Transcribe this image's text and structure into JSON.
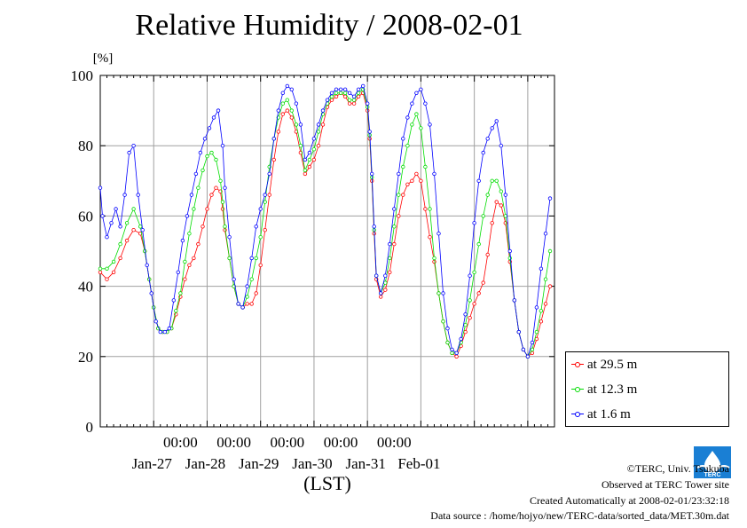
{
  "header": {
    "title": "Relative Humidity / 2008-02-01"
  },
  "chart_data": {
    "type": "line",
    "title": "Relative Humidity / 2008-02-01",
    "ylabel": "[%]",
    "xlabel": "(LST)",
    "ylim": [
      0,
      100
    ],
    "yticks": [
      0,
      20,
      40,
      60,
      80,
      100
    ],
    "xlim_days": [
      "Jan-26 00:00 (approx)",
      "Feb-02 00:00 (approx)"
    ],
    "x_tick_top_labels": [
      "00:00",
      "00:00",
      "00:00",
      "00:00",
      "00:00"
    ],
    "x_tick_bottom_labels": [
      "Jan-27",
      "Jan-28",
      "Jan-29",
      "Jan-30",
      "Jan-31",
      "Feb-01"
    ],
    "grid": true,
    "legend_position": "bottom-right outside",
    "x_unit": "hours from Jan-26 00:00",
    "series": [
      {
        "name": "at 29.5 m",
        "color": "#ff0000",
        "points": [
          [
            0,
            44
          ],
          [
            3,
            42
          ],
          [
            6,
            44
          ],
          [
            9,
            48
          ],
          [
            12,
            53
          ],
          [
            15,
            56
          ],
          [
            18,
            55
          ],
          [
            20,
            50
          ],
          [
            22,
            42
          ],
          [
            24,
            34
          ],
          [
            26,
            28
          ],
          [
            28,
            27
          ],
          [
            30,
            27
          ],
          [
            32,
            28
          ],
          [
            34,
            32
          ],
          [
            36,
            37
          ],
          [
            38,
            42
          ],
          [
            40,
            46
          ],
          [
            42,
            48
          ],
          [
            44,
            52
          ],
          [
            46,
            57
          ],
          [
            48,
            62
          ],
          [
            50,
            66
          ],
          [
            52,
            68
          ],
          [
            54,
            67
          ],
          [
            55,
            62
          ],
          [
            56,
            56
          ],
          [
            58,
            48
          ],
          [
            60,
            40
          ],
          [
            62,
            35
          ],
          [
            64,
            34
          ],
          [
            66,
            35
          ],
          [
            68,
            35
          ],
          [
            70,
            38
          ],
          [
            72,
            46
          ],
          [
            74,
            56
          ],
          [
            76,
            66
          ],
          [
            78,
            76
          ],
          [
            80,
            84
          ],
          [
            82,
            89
          ],
          [
            84,
            90
          ],
          [
            86,
            88
          ],
          [
            88,
            84
          ],
          [
            90,
            78
          ],
          [
            92,
            72
          ],
          [
            94,
            74
          ],
          [
            96,
            76
          ],
          [
            98,
            80
          ],
          [
            100,
            86
          ],
          [
            102,
            91
          ],
          [
            104,
            93
          ],
          [
            106,
            94
          ],
          [
            108,
            95
          ],
          [
            110,
            94
          ],
          [
            112,
            92
          ],
          [
            114,
            92
          ],
          [
            116,
            94
          ],
          [
            118,
            95
          ],
          [
            120,
            90
          ],
          [
            121,
            82
          ],
          [
            122,
            70
          ],
          [
            123,
            55
          ],
          [
            124,
            42
          ],
          [
            126,
            37
          ],
          [
            128,
            39
          ],
          [
            130,
            44
          ],
          [
            132,
            52
          ],
          [
            134,
            60
          ],
          [
            136,
            66
          ],
          [
            138,
            69
          ],
          [
            140,
            70
          ],
          [
            142,
            72
          ],
          [
            144,
            70
          ],
          [
            146,
            62
          ],
          [
            148,
            54
          ],
          [
            150,
            47
          ],
          [
            152,
            38
          ],
          [
            154,
            30
          ],
          [
            156,
            24
          ],
          [
            158,
            21
          ],
          [
            160,
            20
          ],
          [
            162,
            23
          ],
          [
            164,
            27
          ],
          [
            166,
            31
          ],
          [
            168,
            35
          ],
          [
            170,
            38
          ],
          [
            172,
            41
          ],
          [
            174,
            49
          ],
          [
            176,
            58
          ],
          [
            178,
            64
          ],
          [
            180,
            63
          ],
          [
            182,
            58
          ],
          [
            184,
            47
          ],
          [
            186,
            36
          ],
          [
            188,
            27
          ],
          [
            190,
            22
          ],
          [
            192,
            20
          ],
          [
            194,
            21
          ],
          [
            196,
            25
          ],
          [
            198,
            30
          ],
          [
            200,
            35
          ],
          [
            202,
            40
          ]
        ]
      },
      {
        "name": "at 12.3 m",
        "color": "#00dd00",
        "points": [
          [
            0,
            45
          ],
          [
            3,
            45
          ],
          [
            6,
            47
          ],
          [
            9,
            52
          ],
          [
            12,
            58
          ],
          [
            15,
            62
          ],
          [
            18,
            57
          ],
          [
            20,
            50
          ],
          [
            22,
            42
          ],
          [
            24,
            34
          ],
          [
            26,
            28
          ],
          [
            28,
            27
          ],
          [
            30,
            27
          ],
          [
            32,
            28
          ],
          [
            34,
            33
          ],
          [
            36,
            38
          ],
          [
            38,
            47
          ],
          [
            40,
            55
          ],
          [
            42,
            62
          ],
          [
            44,
            68
          ],
          [
            46,
            73
          ],
          [
            48,
            77
          ],
          [
            50,
            78
          ],
          [
            52,
            76
          ],
          [
            54,
            70
          ],
          [
            55,
            64
          ],
          [
            56,
            57
          ],
          [
            58,
            48
          ],
          [
            60,
            40
          ],
          [
            62,
            35
          ],
          [
            64,
            34
          ],
          [
            66,
            37
          ],
          [
            68,
            42
          ],
          [
            70,
            48
          ],
          [
            72,
            54
          ],
          [
            74,
            64
          ],
          [
            76,
            74
          ],
          [
            78,
            82
          ],
          [
            80,
            88
          ],
          [
            82,
            92
          ],
          [
            84,
            93
          ],
          [
            86,
            90
          ],
          [
            88,
            86
          ],
          [
            90,
            80
          ],
          [
            92,
            73
          ],
          [
            94,
            76
          ],
          [
            96,
            79
          ],
          [
            98,
            84
          ],
          [
            100,
            89
          ],
          [
            102,
            92
          ],
          [
            104,
            94
          ],
          [
            106,
            95
          ],
          [
            108,
            95
          ],
          [
            110,
            95
          ],
          [
            112,
            93
          ],
          [
            114,
            93
          ],
          [
            116,
            95
          ],
          [
            118,
            96
          ],
          [
            120,
            91
          ],
          [
            121,
            83
          ],
          [
            122,
            71
          ],
          [
            123,
            56
          ],
          [
            124,
            43
          ],
          [
            126,
            38
          ],
          [
            128,
            41
          ],
          [
            130,
            48
          ],
          [
            132,
            57
          ],
          [
            134,
            66
          ],
          [
            136,
            74
          ],
          [
            138,
            80
          ],
          [
            140,
            86
          ],
          [
            142,
            89
          ],
          [
            144,
            85
          ],
          [
            146,
            74
          ],
          [
            148,
            62
          ],
          [
            150,
            48
          ],
          [
            152,
            38
          ],
          [
            154,
            30
          ],
          [
            156,
            24
          ],
          [
            158,
            21
          ],
          [
            160,
            21
          ],
          [
            162,
            24
          ],
          [
            164,
            29
          ],
          [
            166,
            36
          ],
          [
            168,
            44
          ],
          [
            170,
            52
          ],
          [
            172,
            60
          ],
          [
            174,
            66
          ],
          [
            176,
            70
          ],
          [
            178,
            70
          ],
          [
            180,
            67
          ],
          [
            182,
            60
          ],
          [
            184,
            48
          ],
          [
            186,
            36
          ],
          [
            188,
            27
          ],
          [
            190,
            22
          ],
          [
            192,
            20
          ],
          [
            194,
            22
          ],
          [
            196,
            27
          ],
          [
            198,
            33
          ],
          [
            200,
            42
          ],
          [
            202,
            50
          ]
        ]
      },
      {
        "name": "at 1.6 m",
        "color": "#0000ff",
        "points": [
          [
            0,
            68
          ],
          [
            1,
            60
          ],
          [
            3,
            54
          ],
          [
            5,
            58
          ],
          [
            7,
            62
          ],
          [
            9,
            57
          ],
          [
            11,
            66
          ],
          [
            13,
            78
          ],
          [
            15,
            80
          ],
          [
            17,
            66
          ],
          [
            19,
            56
          ],
          [
            21,
            46
          ],
          [
            23,
            38
          ],
          [
            25,
            30
          ],
          [
            27,
            27
          ],
          [
            29,
            27
          ],
          [
            31,
            28
          ],
          [
            33,
            36
          ],
          [
            35,
            44
          ],
          [
            37,
            53
          ],
          [
            39,
            60
          ],
          [
            41,
            66
          ],
          [
            43,
            72
          ],
          [
            45,
            78
          ],
          [
            47,
            82
          ],
          [
            49,
            85
          ],
          [
            51,
            88
          ],
          [
            53,
            90
          ],
          [
            55,
            80
          ],
          [
            56,
            68
          ],
          [
            58,
            54
          ],
          [
            60,
            42
          ],
          [
            62,
            35
          ],
          [
            64,
            34
          ],
          [
            66,
            40
          ],
          [
            68,
            48
          ],
          [
            70,
            57
          ],
          [
            72,
            62
          ],
          [
            74,
            66
          ],
          [
            76,
            72
          ],
          [
            78,
            82
          ],
          [
            80,
            90
          ],
          [
            82,
            95
          ],
          [
            84,
            97
          ],
          [
            86,
            96
          ],
          [
            88,
            92
          ],
          [
            90,
            86
          ],
          [
            92,
            76
          ],
          [
            94,
            78
          ],
          [
            96,
            82
          ],
          [
            98,
            86
          ],
          [
            100,
            90
          ],
          [
            102,
            93
          ],
          [
            104,
            95
          ],
          [
            106,
            96
          ],
          [
            108,
            96
          ],
          [
            110,
            96
          ],
          [
            112,
            95
          ],
          [
            114,
            94
          ],
          [
            116,
            96
          ],
          [
            118,
            97
          ],
          [
            120,
            92
          ],
          [
            121,
            84
          ],
          [
            122,
            72
          ],
          [
            123,
            57
          ],
          [
            124,
            43
          ],
          [
            126,
            38
          ],
          [
            128,
            43
          ],
          [
            130,
            52
          ],
          [
            132,
            62
          ],
          [
            134,
            72
          ],
          [
            136,
            82
          ],
          [
            138,
            88
          ],
          [
            140,
            92
          ],
          [
            142,
            95
          ],
          [
            144,
            96
          ],
          [
            146,
            92
          ],
          [
            148,
            86
          ],
          [
            150,
            72
          ],
          [
            152,
            55
          ],
          [
            154,
            38
          ],
          [
            156,
            28
          ],
          [
            158,
            22
          ],
          [
            160,
            21
          ],
          [
            162,
            25
          ],
          [
            164,
            32
          ],
          [
            166,
            43
          ],
          [
            168,
            58
          ],
          [
            170,
            70
          ],
          [
            172,
            78
          ],
          [
            174,
            82
          ],
          [
            176,
            85
          ],
          [
            178,
            87
          ],
          [
            180,
            80
          ],
          [
            182,
            66
          ],
          [
            184,
            50
          ],
          [
            186,
            36
          ],
          [
            188,
            27
          ],
          [
            190,
            22
          ],
          [
            192,
            20
          ],
          [
            194,
            24
          ],
          [
            196,
            34
          ],
          [
            198,
            45
          ],
          [
            200,
            55
          ],
          [
            202,
            65
          ]
        ]
      }
    ]
  },
  "footer": {
    "copyright": "©TERC, Univ. Tsukuba",
    "site": "Observed at TERC Tower site",
    "created": "Created Automatically at 2008-02-01/23:32:18",
    "source": "Data source : /home/hojyo/new/TERC-data/sorted_data/MET.30m.dat"
  },
  "logo": {
    "icon": "terc-logo-icon",
    "text": "TERC",
    "color": "#1a7fd4"
  }
}
